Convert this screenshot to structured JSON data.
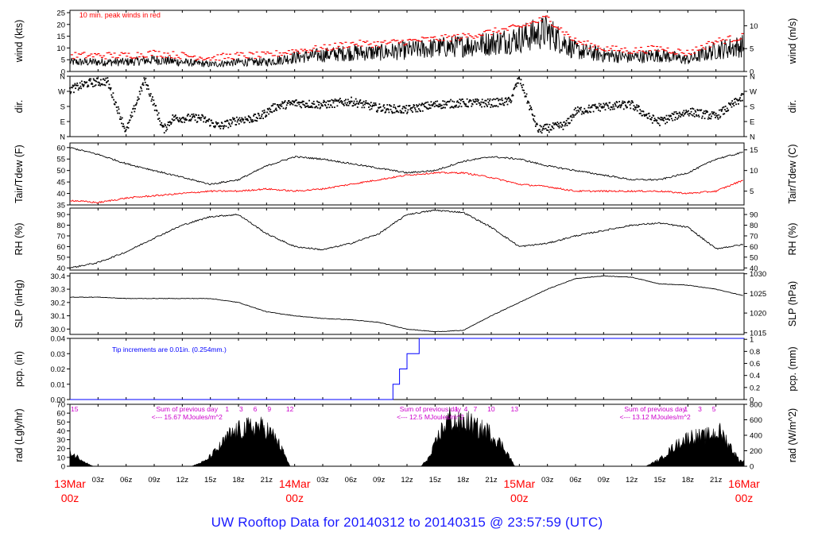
{
  "footer": {
    "title": "UW Rooftop Data for 20140312  to  20140315 @ 23:57:59  (UTC)"
  },
  "colors": {
    "series": "#000000",
    "peak": "#ff0000",
    "tdew": "#ff0000",
    "precip": "#0000ff",
    "annotation": "#cc00cc",
    "time_major": "#ff0000",
    "footer": "#1a1aff"
  },
  "chart_data": [
    {
      "type": "line",
      "panel": "wind",
      "ylabel": "wind (kts)",
      "y2label": "wind (m/s)",
      "ylim": [
        0,
        26
      ],
      "yticks": [
        0,
        5,
        10,
        15,
        20,
        25
      ],
      "y2ticks": [
        0,
        5,
        10
      ],
      "note": "10 min. peak winds in red",
      "x": [
        0,
        3,
        6,
        9,
        12,
        15,
        18,
        21,
        24,
        27,
        30,
        33,
        36,
        39,
        42,
        45,
        48,
        51,
        54,
        57,
        60,
        63,
        66,
        69,
        72
      ],
      "series": [
        {
          "values": [
            4,
            4,
            4,
            5,
            4,
            3,
            4,
            4,
            6,
            7,
            8,
            8,
            9,
            10,
            11,
            12,
            14,
            17,
            9,
            7,
            6,
            7,
            5,
            9,
            11
          ]
        },
        {
          "values": [
            7,
            7,
            7,
            8,
            7,
            6,
            7,
            7,
            9,
            10,
            12,
            12,
            13,
            14,
            15,
            17,
            19,
            23,
            13,
            10,
            9,
            10,
            8,
            13,
            15
          ]
        }
      ]
    },
    {
      "type": "scatter",
      "panel": "dir",
      "ylabel": "dir.",
      "y2label": "dir.",
      "ylim": [
        0,
        360
      ],
      "ytick_labels": [
        "N",
        "E",
        "S",
        "W",
        "N"
      ],
      "x": [
        0,
        2,
        4,
        6,
        8,
        10,
        11,
        14,
        16,
        18,
        20,
        22,
        24,
        27,
        30,
        33,
        36,
        39,
        42,
        45,
        47,
        48,
        50,
        53,
        54,
        57,
        60,
        62,
        63,
        66,
        69,
        72
      ],
      "series": [
        {
          "values": [
            280,
            320,
            330,
            30,
            340,
            40,
            110,
            110,
            60,
            100,
            110,
            180,
            200,
            190,
            210,
            170,
            160,
            190,
            200,
            200,
            210,
            350,
            40,
            70,
            150,
            180,
            190,
            110,
            90,
            150,
            120,
            240
          ]
        }
      ]
    },
    {
      "type": "line",
      "panel": "temp",
      "ylabel": "Tair/Tdew (F)",
      "y2label": "Tair/Tdew (C)",
      "ylim": [
        35,
        62
      ],
      "yticks": [
        35,
        40,
        45,
        50,
        55,
        60
      ],
      "y2ticks": [
        0,
        5,
        10,
        15
      ],
      "x": [
        0,
        3,
        6,
        9,
        12,
        15,
        18,
        21,
        24,
        27,
        30,
        33,
        36,
        39,
        42,
        45,
        48,
        51,
        54,
        57,
        60,
        63,
        66,
        69,
        72
      ],
      "series": [
        {
          "values": [
            60,
            57,
            53,
            50,
            47,
            44,
            46,
            52,
            56,
            55,
            53,
            51,
            49,
            50,
            54,
            56,
            55,
            52,
            50,
            48,
            46,
            46,
            49,
            55,
            58
          ]
        },
        {
          "values": [
            37,
            36,
            38,
            39,
            40,
            41,
            41,
            42,
            41,
            42,
            44,
            46,
            48,
            49,
            49,
            47,
            44,
            43,
            41,
            41,
            41,
            41,
            40,
            41,
            46
          ]
        }
      ]
    },
    {
      "type": "line",
      "panel": "rh",
      "ylabel": "RH (%)",
      "y2label": "RH (%)",
      "ylim": [
        38,
        96
      ],
      "yticks": [
        40,
        50,
        60,
        70,
        80,
        90
      ],
      "x": [
        0,
        3,
        6,
        9,
        12,
        15,
        18,
        21,
        24,
        27,
        30,
        33,
        36,
        39,
        42,
        45,
        48,
        51,
        54,
        57,
        60,
        63,
        66,
        69,
        72
      ],
      "series": [
        {
          "values": [
            40,
            45,
            55,
            68,
            80,
            88,
            90,
            72,
            60,
            57,
            63,
            72,
            90,
            94,
            92,
            78,
            60,
            63,
            70,
            75,
            80,
            82,
            78,
            58,
            62
          ]
        }
      ]
    },
    {
      "type": "line",
      "panel": "slp",
      "ylabel": "SLP (inHg)",
      "y2label": "SLP (hPa)",
      "ylim": [
        29.96,
        30.42
      ],
      "yticks": [
        30.0,
        30.1,
        30.2,
        30.3,
        30.4
      ],
      "y2ticks": [
        1015,
        1020,
        1025,
        1030
      ],
      "x": [
        0,
        3,
        6,
        9,
        12,
        15,
        18,
        21,
        24,
        27,
        30,
        33,
        36,
        39,
        42,
        45,
        48,
        51,
        54,
        57,
        60,
        63,
        66,
        69,
        72
      ],
      "series": [
        {
          "values": [
            30.24,
            30.24,
            30.23,
            30.23,
            30.23,
            30.23,
            30.2,
            30.13,
            30.1,
            30.08,
            30.07,
            30.05,
            30.0,
            29.98,
            29.99,
            30.1,
            30.2,
            30.3,
            30.38,
            30.4,
            30.39,
            30.34,
            30.33,
            30.3,
            30.25
          ]
        }
      ]
    },
    {
      "type": "line",
      "panel": "pcp",
      "ylabel": "pcp. (in)",
      "y2label": "pcp. (mm)",
      "ylim": [
        0,
        0.04
      ],
      "yticks": [
        0.0,
        0.01,
        0.02,
        0.03,
        0.04
      ],
      "y2ticks": [
        0,
        0.2,
        0.4,
        0.6,
        0.8,
        1
      ],
      "note": "Tip increments are 0.01in. (0.254mm.)",
      "x": [
        0,
        34.5,
        34.5,
        35.2,
        35.2,
        36.0,
        36.0,
        37.3,
        37.3,
        72
      ],
      "series": [
        {
          "values": [
            0,
            0,
            0.01,
            0.01,
            0.02,
            0.02,
            0.03,
            0.03,
            0.04,
            0.04
          ]
        }
      ]
    },
    {
      "type": "area",
      "panel": "rad",
      "ylabel": "rad (Lgly/hr)",
      "y2label": "rad (W/m^2)",
      "ylim": [
        0,
        70
      ],
      "yticks": [
        0,
        10,
        20,
        30,
        40,
        50,
        60,
        70
      ],
      "y2ticks": [
        0,
        200,
        400,
        600,
        800
      ],
      "annotations": [
        {
          "line1": "Sum of previous day",
          "line2": "<--- 15.67 MJoules/m^2"
        },
        {
          "line1": "Sum of previous day",
          "line2": "<--- 12.5 MJoules/m^2"
        },
        {
          "line1": "Sum of previous day",
          "line2": "<--- 13.12 MJoules/m^2"
        }
      ],
      "hour_marks": [
        {
          "x": 0,
          "label": "15"
        },
        {
          "x": 16.5,
          "label": "1"
        },
        {
          "x": 18,
          "label": "3"
        },
        {
          "x": 19.5,
          "label": "6"
        },
        {
          "x": 21,
          "label": "9"
        },
        {
          "x": 23,
          "label": "12"
        },
        {
          "x": 41,
          "label": "1"
        },
        {
          "x": 42,
          "label": "4"
        },
        {
          "x": 43,
          "label": "7"
        },
        {
          "x": 44.5,
          "label": "10"
        },
        {
          "x": 47,
          "label": "13"
        },
        {
          "x": 65.5,
          "label": "1"
        },
        {
          "x": 67,
          "label": "3"
        },
        {
          "x": 68.5,
          "label": "5"
        }
      ],
      "x": [
        0,
        1,
        2,
        2.5,
        13,
        14.5,
        16,
        17,
        18,
        19,
        20,
        21,
        22,
        23,
        23.5,
        37.5,
        38.5,
        39.5,
        40.5,
        41.5,
        42.5,
        43.5,
        44.5,
        45.5,
        46.5,
        47.5,
        61.5,
        63,
        64.5,
        65.5,
        66.5,
        67.5,
        68.5,
        69.5,
        70.5,
        71.5
      ],
      "series": [
        {
          "values": [
            20,
            12,
            3,
            0,
            0,
            8,
            28,
            45,
            52,
            56,
            58,
            54,
            40,
            15,
            0,
            0,
            15,
            48,
            70,
            62,
            64,
            55,
            52,
            40,
            25,
            0,
            0,
            10,
            28,
            38,
            44,
            42,
            46,
            50,
            30,
            8
          ]
        }
      ]
    }
  ],
  "time_axis": {
    "minor_labels": [
      "03z",
      "06z",
      "09z",
      "12z",
      "15z",
      "18z",
      "21z",
      "03z",
      "06z",
      "09z",
      "12z",
      "15z",
      "18z",
      "21z",
      "03z",
      "06z",
      "09z",
      "12z",
      "15z",
      "18z",
      "21z"
    ],
    "major_labels": [
      {
        "date": "13Mar",
        "time": "00z"
      },
      {
        "date": "14Mar",
        "time": "00z"
      },
      {
        "date": "15Mar",
        "time": "00z"
      },
      {
        "date": "16Mar",
        "time": "00z"
      }
    ]
  }
}
